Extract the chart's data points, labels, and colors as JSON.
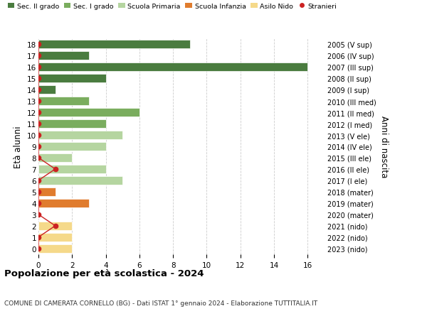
{
  "ages": [
    18,
    17,
    16,
    15,
    14,
    13,
    12,
    11,
    10,
    9,
    8,
    7,
    6,
    5,
    4,
    3,
    2,
    1,
    0
  ],
  "values": [
    9,
    3,
    16,
    4,
    1,
    3,
    6,
    4,
    5,
    4,
    2,
    4,
    5,
    1,
    3,
    0,
    2,
    2,
    2
  ],
  "stranieri": [
    0,
    0,
    0,
    0,
    0,
    0,
    0,
    0,
    0,
    0,
    0,
    1,
    0,
    0,
    0,
    0,
    1,
    0,
    0
  ],
  "bar_colors": [
    "#4a7c3f",
    "#4a7c3f",
    "#4a7c3f",
    "#4a7c3f",
    "#4a7c3f",
    "#7aad5e",
    "#7aad5e",
    "#7aad5e",
    "#b5d5a0",
    "#b5d5a0",
    "#b5d5a0",
    "#b5d5a0",
    "#b5d5a0",
    "#e07c2e",
    "#e07c2e",
    "#e07c2e",
    "#f5d98a",
    "#f5d98a",
    "#f5d98a"
  ],
  "right_labels": [
    "2005 (V sup)",
    "2006 (IV sup)",
    "2007 (III sup)",
    "2008 (II sup)",
    "2009 (I sup)",
    "2010 (III med)",
    "2011 (II med)",
    "2012 (I med)",
    "2013 (V ele)",
    "2014 (IV ele)",
    "2015 (III ele)",
    "2016 (II ele)",
    "2017 (I ele)",
    "2018 (mater)",
    "2019 (mater)",
    "2020 (mater)",
    "2021 (nido)",
    "2022 (nido)",
    "2023 (nido)"
  ],
  "legend_labels": [
    "Sec. II grado",
    "Sec. I grado",
    "Scuola Primaria",
    "Scuola Infanzia",
    "Asilo Nido",
    "Stranieri"
  ],
  "legend_colors": [
    "#4a7c3f",
    "#7aad5e",
    "#b5d5a0",
    "#e07c2e",
    "#f5d98a",
    "#cc2222"
  ],
  "left_ylabel": "Età alunni",
  "right_ylabel": "Anni di nascita",
  "title": "Popolazione per età scolastica - 2024",
  "subtitle": "COMUNE DI CAMERATA CORNELLO (BG) - Dati ISTAT 1° gennaio 2024 - Elaborazione TUTTITALIA.IT",
  "xlim": [
    0,
    17
  ],
  "ylim": [
    -0.5,
    18.5
  ],
  "stranieri_color": "#cc2222",
  "background_color": "#ffffff",
  "grid_color": "#cccccc"
}
